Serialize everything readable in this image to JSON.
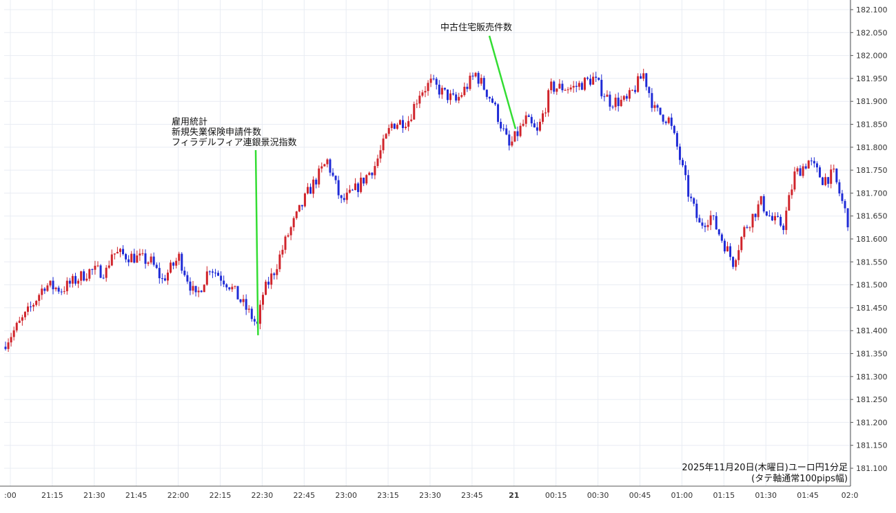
{
  "chart_data": {
    "type": "candlestick",
    "title": "2025年11月20日(木曜日)ユーロ円1分足",
    "subtitle": "(タテ軸通常100pips幅)",
    "ylim": [
      181.05,
      182.12
    ],
    "y_ticks": [
      "182.100",
      "182.050",
      "182.000",
      "181.950",
      "181.900",
      "181.850",
      "181.800",
      "181.750",
      "181.700",
      "181.650",
      "181.600",
      "181.550",
      "181.500",
      "181.450",
      "181.400",
      "181.350",
      "181.300",
      "181.250",
      "181.200",
      "181.150",
      "181.100"
    ],
    "x_ticks": [
      ":00",
      "21:15",
      "21:30",
      "21:45",
      "22:00",
      "22:15",
      "22:30",
      "22:45",
      "23:00",
      "23:15",
      "23:30",
      "23:45",
      "21",
      "00:15",
      "00:30",
      "00:45",
      "01:00",
      "01:15",
      "01:30",
      "01:45",
      "02:0"
    ],
    "grid": true,
    "colors": {
      "up": "#d0242b",
      "down": "#1f2bd6",
      "annotation_line": "#33dd33",
      "grid": "#e8ecf3"
    },
    "anchors": [
      [
        0,
        181.375
      ],
      [
        8,
        181.44
      ],
      [
        14,
        181.5
      ],
      [
        20,
        181.49
      ],
      [
        30,
        181.53
      ],
      [
        36,
        181.53
      ],
      [
        38,
        181.57
      ],
      [
        46,
        181.56
      ],
      [
        52,
        181.55
      ],
      [
        56,
        181.51
      ],
      [
        62,
        181.56
      ],
      [
        68,
        181.47
      ],
      [
        73,
        181.54
      ],
      [
        80,
        181.5
      ],
      [
        88,
        181.43
      ],
      [
        90,
        181.41
      ],
      [
        92,
        181.48
      ],
      [
        96,
        181.53
      ],
      [
        101,
        181.61
      ],
      [
        108,
        181.7
      ],
      [
        115,
        181.77
      ],
      [
        120,
        181.68
      ],
      [
        124,
        181.7
      ],
      [
        132,
        181.76
      ],
      [
        138,
        181.85
      ],
      [
        144,
        181.86
      ],
      [
        148,
        181.92
      ],
      [
        152,
        181.94
      ],
      [
        156,
        181.92
      ],
      [
        161,
        181.9
      ],
      [
        168,
        181.96
      ],
      [
        174,
        181.9
      ],
      [
        180,
        181.8
      ],
      [
        186,
        181.86
      ],
      [
        190,
        181.83
      ],
      [
        195,
        181.93
      ],
      [
        203,
        181.93
      ],
      [
        210,
        181.95
      ],
      [
        216,
        181.9
      ],
      [
        222,
        181.9
      ],
      [
        228,
        181.96
      ],
      [
        232,
        181.88
      ],
      [
        237,
        181.86
      ],
      [
        240,
        181.8
      ],
      [
        244,
        181.7
      ],
      [
        248,
        181.63
      ],
      [
        252,
        181.65
      ],
      [
        256,
        181.6
      ],
      [
        260,
        181.55
      ],
      [
        264,
        181.62
      ],
      [
        270,
        181.68
      ],
      [
        274,
        181.64
      ],
      [
        278,
        181.63
      ],
      [
        282,
        181.74
      ],
      [
        287,
        181.77
      ],
      [
        292,
        181.73
      ],
      [
        296,
        181.74
      ],
      [
        300,
        181.66
      ],
      [
        301,
        181.64
      ]
    ],
    "annotations": [
      {
        "lines": [
          "雇用統計",
          "新規失業保険申請件数",
          "フィラデルフィア連銀景況指数"
        ],
        "time_index": 90,
        "price": 181.39
      },
      {
        "lines": [
          "中古住宅販売件数"
        ],
        "time_index": 183,
        "price": 181.84
      }
    ]
  }
}
